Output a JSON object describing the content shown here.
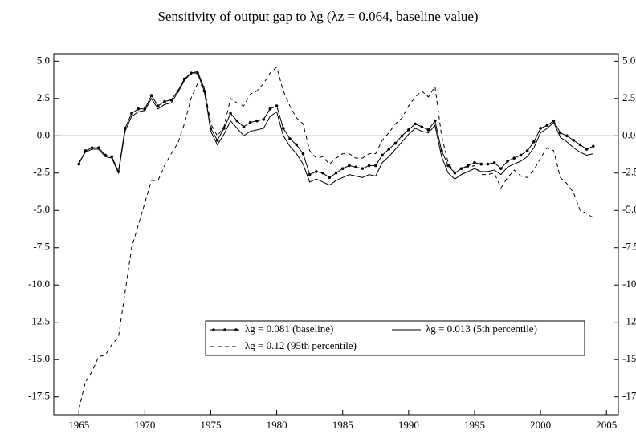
{
  "chart_data": {
    "type": "line",
    "title": "Sensitivity of output gap to λg (λz = 0.064, baseline value)",
    "x": [
      1965,
      1965.5,
      1966,
      1966.5,
      1967,
      1967.5,
      1968,
      1968.5,
      1969,
      1969.5,
      1970,
      1970.5,
      1971,
      1971.5,
      1972,
      1972.5,
      1973,
      1973.5,
      1974,
      1974.5,
      1975,
      1975.5,
      1976,
      1976.5,
      1977,
      1977.5,
      1978,
      1978.5,
      1979,
      1979.5,
      1980,
      1980.5,
      1981,
      1981.5,
      1982,
      1982.5,
      1983,
      1983.5,
      1984,
      1984.5,
      1985,
      1985.5,
      1986,
      1986.5,
      1987,
      1987.5,
      1988,
      1988.5,
      1989,
      1989.5,
      1990,
      1990.5,
      1991,
      1991.5,
      1992,
      1992.5,
      1993,
      1993.5,
      1994,
      1994.5,
      1995,
      1995.5,
      1996,
      1996.5,
      1997,
      1997.5,
      1998,
      1998.5,
      1999,
      1999.5,
      2000,
      2000.5,
      2001,
      2001.5,
      2002,
      2002.5,
      2003,
      2003.5,
      2004
    ],
    "series": [
      {
        "name": "λg = 0.081 (baseline)",
        "color": "#000000",
        "dash": "solid",
        "marker": true,
        "values": [
          -1.9,
          -1.0,
          -0.8,
          -0.8,
          -1.3,
          -1.4,
          -2.4,
          0.5,
          1.5,
          1.8,
          1.8,
          2.7,
          2.0,
          2.3,
          2.4,
          3.0,
          3.8,
          4.2,
          4.2,
          3.0,
          0.5,
          -0.3,
          0.5,
          1.5,
          1.0,
          0.6,
          0.9,
          1.0,
          1.1,
          1.8,
          2.0,
          0.5,
          -0.2,
          -0.6,
          -1.2,
          -2.6,
          -2.4,
          -2.5,
          -2.8,
          -2.5,
          -2.2,
          -2.0,
          -2.1,
          -2.2,
          -2.0,
          -2.0,
          -1.3,
          -0.9,
          -0.5,
          0.0,
          0.4,
          0.8,
          0.6,
          0.4,
          1.0,
          -1.0,
          -2.0,
          -2.5,
          -2.2,
          -2.0,
          -1.8,
          -1.9,
          -1.9,
          -1.8,
          -2.2,
          -1.7,
          -1.5,
          -1.3,
          -1.0,
          -0.4,
          0.5,
          0.7,
          1.0,
          0.2,
          0.0,
          -0.3,
          -0.6,
          -0.9,
          -0.7
        ]
      },
      {
        "name": "λg = 0.013 (5th percentile)",
        "color": "#000000",
        "dash": "solid",
        "marker": false,
        "values": [
          -1.8,
          -1.1,
          -0.9,
          -0.9,
          -1.4,
          -1.5,
          -2.5,
          0.3,
          1.3,
          1.6,
          1.7,
          2.5,
          1.8,
          2.1,
          2.2,
          2.9,
          3.7,
          4.2,
          4.3,
          3.2,
          0.3,
          -0.6,
          0.1,
          1.0,
          0.5,
          0.0,
          0.3,
          0.4,
          0.5,
          1.3,
          1.6,
          0.0,
          -0.7,
          -1.2,
          -1.9,
          -3.1,
          -2.9,
          -3.1,
          -3.3,
          -3.0,
          -2.8,
          -2.6,
          -2.7,
          -2.8,
          -2.6,
          -2.7,
          -1.8,
          -1.4,
          -0.9,
          -0.4,
          0.1,
          0.5,
          0.3,
          0.2,
          0.7,
          -1.4,
          -2.5,
          -2.9,
          -2.6,
          -2.4,
          -2.2,
          -2.4,
          -2.4,
          -2.3,
          -2.6,
          -2.1,
          -1.9,
          -1.7,
          -1.4,
          -0.8,
          0.2,
          0.5,
          0.9,
          -0.1,
          -0.4,
          -0.8,
          -1.1,
          -1.3,
          -1.2
        ]
      },
      {
        "name": "λg = 0.12 (95th percentile)",
        "color": "#000000",
        "dash": "dashed",
        "marker": false,
        "values": [
          -18.3,
          -16.5,
          -15.8,
          -14.8,
          -14.7,
          -14.0,
          -13.5,
          -10.5,
          -7.5,
          -6.0,
          -4.5,
          -3.0,
          -3.0,
          -2.0,
          -1.2,
          -0.5,
          0.8,
          2.5,
          3.5,
          3.3,
          0.8,
          0.0,
          0.6,
          2.5,
          2.2,
          2.0,
          2.8,
          3.0,
          3.5,
          4.2,
          4.6,
          3.0,
          2.0,
          1.2,
          0.8,
          -1.0,
          -1.5,
          -1.4,
          -1.9,
          -1.5,
          -1.2,
          -1.2,
          -1.5,
          -1.5,
          -1.2,
          -1.2,
          -0.3,
          0.2,
          0.8,
          1.2,
          2.0,
          2.6,
          3.0,
          2.6,
          3.3,
          0.0,
          -1.8,
          -2.5,
          -2.2,
          -2.1,
          -2.0,
          -2.6,
          -2.6,
          -2.5,
          -3.5,
          -2.8,
          -2.3,
          -2.7,
          -2.8,
          -2.3,
          -1.5,
          -0.8,
          -1.0,
          -2.8,
          -3.2,
          -3.8,
          -5.0,
          -5.2,
          -5.5
        ]
      }
    ],
    "xlim": [
      1963.1,
      2005.9
    ],
    "xticks": [
      1965,
      1970,
      1975,
      1980,
      1985,
      1990,
      1995,
      2000,
      2005
    ],
    "ylim": [
      -18.7,
      5.5
    ],
    "yticks": [
      {
        "value": 5,
        "label": "5.0"
      },
      2.5,
      {
        "value": 0,
        "label": "0.0"
      },
      -2.5,
      {
        "value": -5,
        "label": "-5.0"
      },
      -7.5,
      {
        "value": -10,
        "label": "-10.0"
      },
      -12.5,
      {
        "value": -15,
        "label": "-15.0"
      },
      -17.5
    ],
    "reference_line": 0,
    "grid": false,
    "legend": "lower center"
  }
}
